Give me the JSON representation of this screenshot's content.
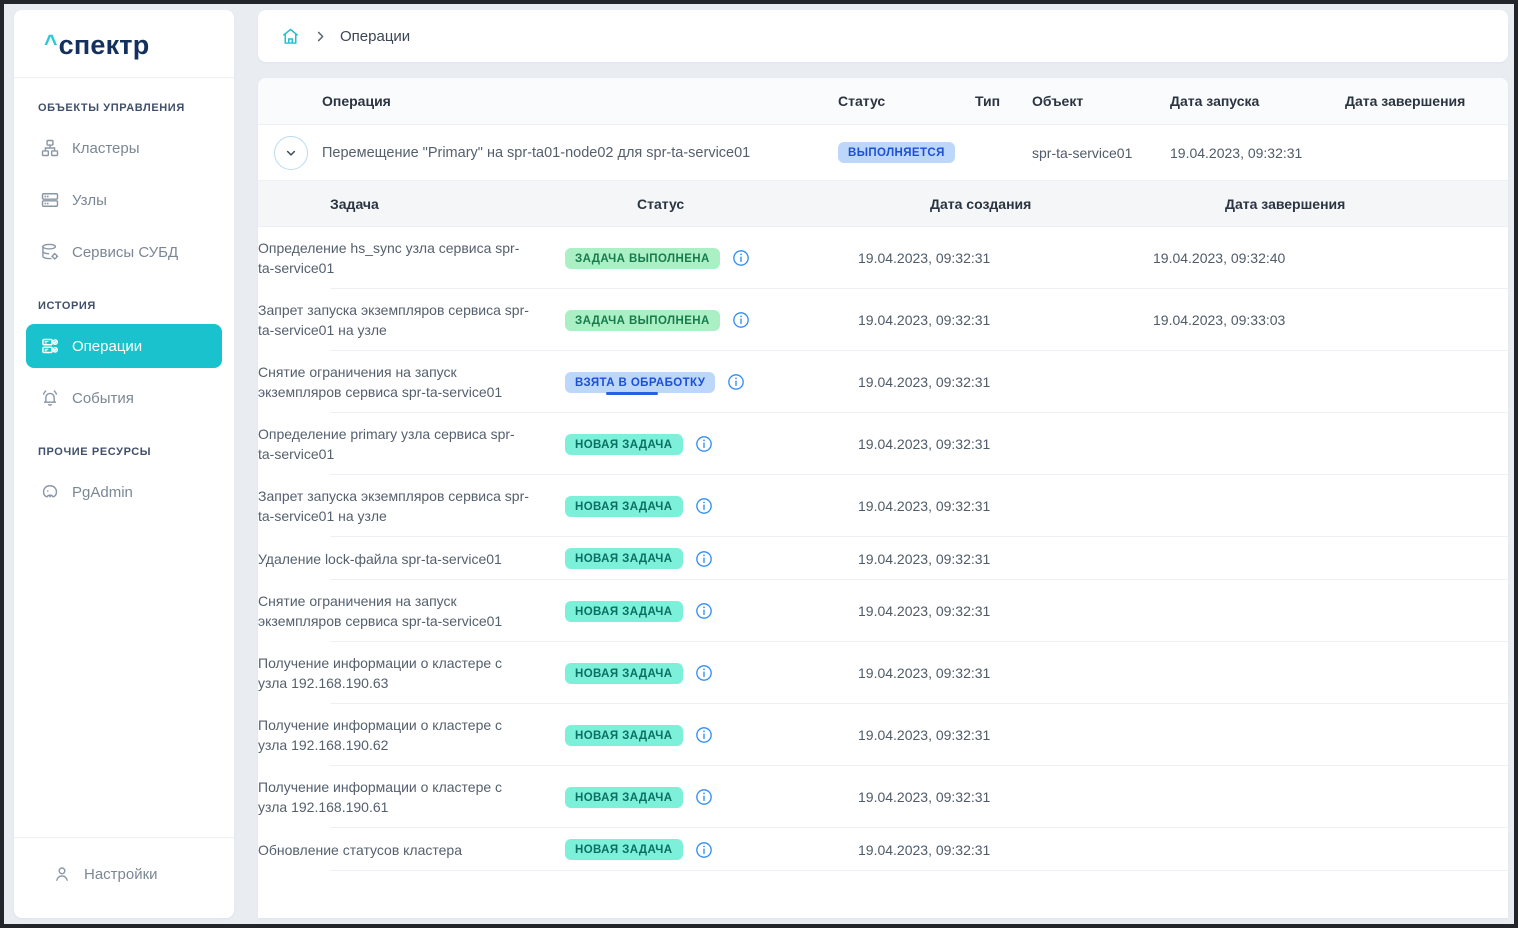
{
  "app": {
    "logo_caret": "^",
    "logo_text": "спектр"
  },
  "colors": {
    "accent_teal": "#19c2cd",
    "logo_navy": "#14305c",
    "badge_blue_bg": "#bcd7f9",
    "badge_blue_text": "#1d4fd7",
    "badge_green_bg": "#abefc5",
    "badge_green_text": "#177c4d",
    "badge_mint_bg": "#7df0d9",
    "badge_mint_text": "#0b6f63",
    "info_icon": "#2f8df2",
    "page_bg": "#e9edf2"
  },
  "sidebar": {
    "sections": [
      {
        "label": "ОБЪЕКТЫ УПРАВЛЕНИЯ",
        "items": [
          {
            "label": "Кластеры",
            "icon": "clusters-icon",
            "active": false
          },
          {
            "label": "Узлы",
            "icon": "nodes-icon",
            "active": false
          },
          {
            "label": "Сервисы СУБД",
            "icon": "db-services-icon",
            "active": false
          }
        ]
      },
      {
        "label": "ИСТОРИЯ",
        "items": [
          {
            "label": "Операции",
            "icon": "operations-icon",
            "active": true
          },
          {
            "label": "События",
            "icon": "events-icon",
            "active": false
          }
        ]
      },
      {
        "label": "ПРОЧИЕ РЕСУРСЫ",
        "items": [
          {
            "label": "PgAdmin",
            "icon": "pgadmin-icon",
            "active": false
          }
        ]
      }
    ],
    "footer_item": {
      "label": "Настройки",
      "icon": "user-icon"
    }
  },
  "breadcrumb": {
    "current": "Операции"
  },
  "operations": {
    "columns": [
      "Операция",
      "Статус",
      "Тип",
      "Объект",
      "Дата запуска",
      "Дата завершения"
    ],
    "row": {
      "name": "Перемещение \"Primary\" на spr-ta01-node02 для spr-ta-service01",
      "status": "ВЫПОЛНЯЕТСЯ",
      "status_type": "running",
      "type": "",
      "object": "spr-ta-service01",
      "started": "19.04.2023, 09:32:31",
      "finished": ""
    }
  },
  "tasks": {
    "columns": [
      "Задача",
      "Статус",
      "Дата создания",
      "Дата завершения"
    ],
    "rows": [
      {
        "task": "Определение hs_sync узла сервиса spr-ta-service01",
        "status": "ЗАДАЧА ВЫПОЛНЕНА",
        "status_type": "done",
        "created": "19.04.2023, 09:32:31",
        "finished": "19.04.2023, 09:32:40"
      },
      {
        "task": "Запрет запуска экземпляров сервиса spr-ta-service01 на узле",
        "status": "ЗАДАЧА ВЫПОЛНЕНА",
        "status_type": "done",
        "created": "19.04.2023, 09:32:31",
        "finished": "19.04.2023, 09:33:03"
      },
      {
        "task": "Снятие ограничения на запуск экземпляров сервиса spr-ta-service01",
        "status": "ВЗЯТА В ОБРАБОТКУ",
        "status_type": "processing",
        "created": "19.04.2023, 09:32:31",
        "finished": ""
      },
      {
        "task": "Определение primary узла сервиса spr-ta-service01",
        "status": "НОВАЯ ЗАДАЧА",
        "status_type": "new",
        "created": "19.04.2023, 09:32:31",
        "finished": ""
      },
      {
        "task": "Запрет запуска экземпляров сервиса spr-ta-service01 на узле",
        "status": "НОВАЯ ЗАДАЧА",
        "status_type": "new",
        "created": "19.04.2023, 09:32:31",
        "finished": ""
      },
      {
        "task": "Удаление lock-файла spr-ta-service01",
        "status": "НОВАЯ ЗАДАЧА",
        "status_type": "new",
        "created": "19.04.2023, 09:32:31",
        "finished": ""
      },
      {
        "task": "Снятие ограничения на запуск экземпляров сервиса spr-ta-service01",
        "status": "НОВАЯ ЗАДАЧА",
        "status_type": "new",
        "created": "19.04.2023, 09:32:31",
        "finished": ""
      },
      {
        "task": "Получение информации о кластере с узла 192.168.190.63",
        "status": "НОВАЯ ЗАДАЧА",
        "status_type": "new",
        "created": "19.04.2023, 09:32:31",
        "finished": ""
      },
      {
        "task": "Получение информации о кластере с узла 192.168.190.62",
        "status": "НОВАЯ ЗАДАЧА",
        "status_type": "new",
        "created": "19.04.2023, 09:32:31",
        "finished": ""
      },
      {
        "task": "Получение информации о кластере с узла 192.168.190.61",
        "status": "НОВАЯ ЗАДАЧА",
        "status_type": "new",
        "created": "19.04.2023, 09:32:31",
        "finished": ""
      },
      {
        "task": "Обновление статусов кластера",
        "status": "НОВАЯ ЗАДАЧА",
        "status_type": "new",
        "created": "19.04.2023, 09:32:31",
        "finished": ""
      }
    ]
  }
}
